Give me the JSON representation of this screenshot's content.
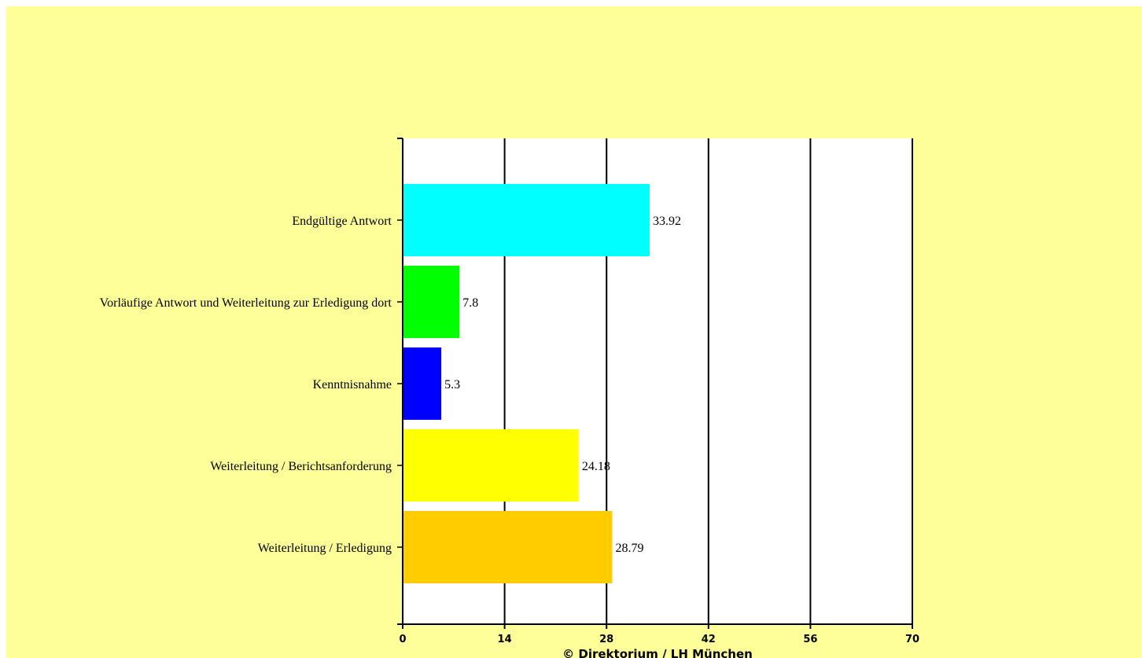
{
  "colors": {
    "page_background": "#ffff99",
    "plot_background": "#ffffff",
    "axis_and_grid": "#000000"
  },
  "chart_data": {
    "type": "bar",
    "orientation": "horizontal",
    "categories": [
      "Endgültige Antwort",
      "Vorläufige Antwort und Weiterleitung zur Erledigung dort",
      "Kenntnisnahme",
      "Weiterleitung / Berichtsanforderung",
      "Weiterleitung / Erledigung"
    ],
    "values": [
      33.92,
      7.8,
      5.3,
      24.18,
      28.79
    ],
    "value_labels": [
      "33.92",
      "7.8",
      "5.3",
      "24.18",
      "28.79"
    ],
    "bar_colors": [
      "#00ffff",
      "#00ff00",
      "#0000ff",
      "#ffff00",
      "#ffcc00"
    ],
    "xlim": [
      0,
      70
    ],
    "x_ticks": [
      0,
      14,
      28,
      42,
      56,
      70
    ],
    "x_tick_labels": [
      "0",
      "14",
      "28",
      "42",
      "56",
      "70"
    ],
    "grid": "vertical",
    "footer": "© Direktorium / LH München"
  }
}
